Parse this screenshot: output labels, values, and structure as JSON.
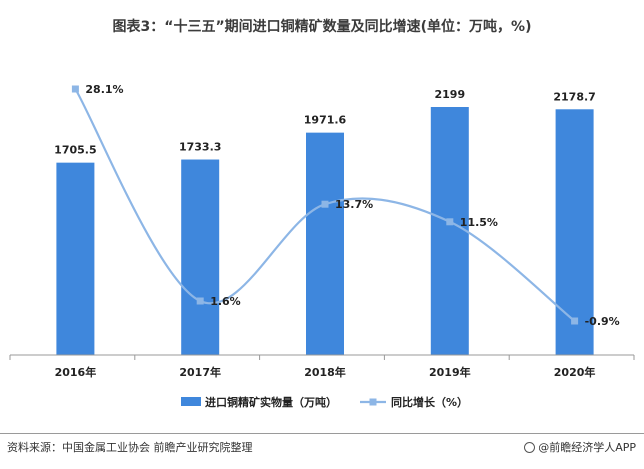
{
  "chart_data": {
    "type": "bar",
    "title": "图表3：“十三五”期间进口铜精矿数量及同比增速(单位：万吨，%)",
    "categories": [
      "2016年",
      "2017年",
      "2018年",
      "2019年",
      "2020年"
    ],
    "series": [
      {
        "name": "进口铜精矿实物量（万吨）",
        "type": "bar",
        "values": [
          1705.5,
          1733.3,
          1971.6,
          2199,
          2178.7
        ],
        "labels": [
          "1705.5",
          "1733.3",
          "1971.6",
          "2199",
          "2178.7"
        ],
        "color": "#3f87dc"
      },
      {
        "name": "同比增长（%）",
        "type": "line",
        "smooth": true,
        "values": [
          28.1,
          1.6,
          13.7,
          11.5,
          -0.9
        ],
        "labels": [
          "28.1%",
          "1.6%",
          "13.7%",
          "11.5%",
          "-0.9%"
        ],
        "color": "#8db6e6"
      }
    ],
    "legend_position": "bottom",
    "grid": false
  },
  "footer": {
    "source": "资料来源：中国金属工业协会 前瞻产业研究院整理",
    "brand": "@前瞻经济学人APP"
  }
}
